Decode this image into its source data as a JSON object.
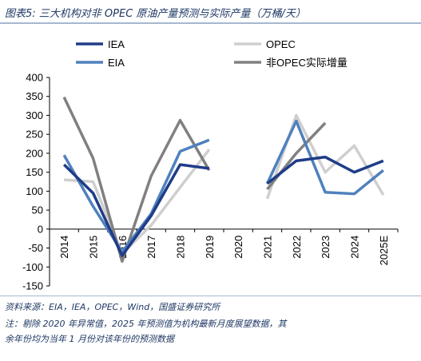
{
  "title": "图表5:  三大机构对非 OPEC 原油产量预测与实际产量（万桶/天）",
  "source_lines": [
    "资料来源：EIA，IEA，OPEC，Wind，国盛证券研究所",
    "注：剔除 2020 年异常值，2025 年预测值为机构最新月度展望数据，其",
    "余年份均为当年 1 月份对该年份的预测数据"
  ],
  "chart_data": {
    "type": "line",
    "categories": [
      "2014",
      "2015",
      "2016",
      "2017",
      "2018",
      "2019",
      "2020",
      "2021",
      "2022",
      "2023",
      "2024",
      "2025E"
    ],
    "ylim": [
      -150,
      400
    ],
    "yticks": [
      -150,
      -100,
      -50,
      0,
      50,
      100,
      150,
      200,
      250,
      300,
      350,
      400
    ],
    "grid": false,
    "legend_position": "top",
    "series": [
      {
        "name": "IEA",
        "color": "#1f3c88",
        "values": [
          170,
          95,
          -70,
          35,
          170,
          160,
          null,
          120,
          180,
          190,
          150,
          180
        ]
      },
      {
        "name": "OPEC",
        "color": "#cfcfcf",
        "values": [
          130,
          125,
          -65,
          10,
          110,
          210,
          null,
          80,
          300,
          150,
          220,
          90
        ]
      },
      {
        "name": "EIA",
        "color": "#4f81bd",
        "values": [
          195,
          60,
          -60,
          40,
          205,
          235,
          null,
          120,
          285,
          97,
          93,
          155
        ]
      },
      {
        "name": "非OPEC实际增量",
        "color": "#808080",
        "values": [
          348,
          187,
          -85,
          140,
          287,
          155,
          null,
          105,
          200,
          280,
          null,
          null
        ]
      }
    ]
  }
}
